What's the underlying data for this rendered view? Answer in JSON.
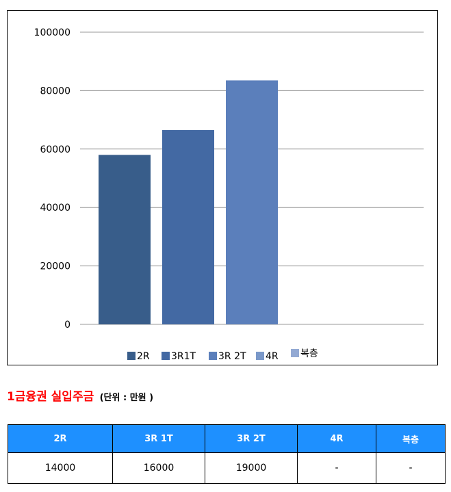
{
  "chart_data": {
    "type": "bar",
    "categories": [
      "2R",
      "3R1T",
      "3R 2T",
      "4R",
      "복층"
    ],
    "values": [
      58000,
      66500,
      83500,
      null,
      null
    ],
    "ylim": [
      0,
      100000
    ],
    "yticks": [
      "100000",
      "80000",
      "60000",
      "40000",
      "20000",
      "0"
    ],
    "grid": true,
    "legend_position": "bottom",
    "legend": [
      "2R",
      "3R1T",
      "3R 2T",
      "4R",
      "복층"
    ],
    "colors": [
      "#385d8a",
      "#4369a3",
      "#5b7fbb",
      "#7a98c9",
      "#93a9d3"
    ]
  },
  "section": {
    "title": "1금융권 실입주금",
    "unit": "(단위 : 만원 )"
  },
  "table": {
    "headers": [
      "2R",
      "3R 1T",
      "3R 2T",
      "4R",
      "복층"
    ],
    "rows": [
      [
        "14000",
        "16000",
        "19000",
        "-",
        "-"
      ]
    ]
  }
}
